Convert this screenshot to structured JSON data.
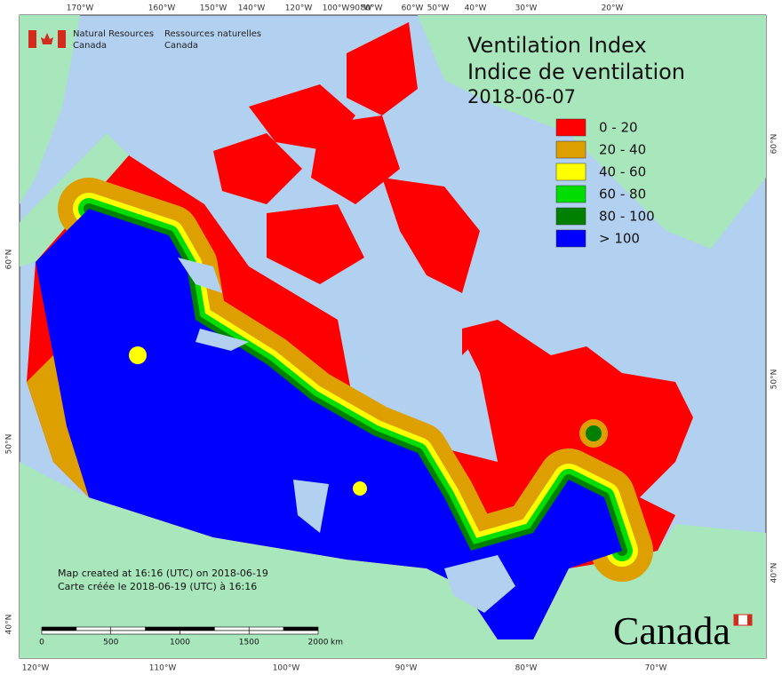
{
  "header": {
    "title": "Ventilation Index",
    "title_fr": "Indice de ventilation",
    "date": "2018-06-07"
  },
  "agency": {
    "en": [
      "Natural Resources",
      "Canada"
    ],
    "fr": [
      "Ressources naturelles",
      "Canada"
    ]
  },
  "legend": [
    {
      "label": "0 - 20",
      "color": "#ff0000"
    },
    {
      "label": "20 - 40",
      "color": "#dda000"
    },
    {
      "label": "40 - 60",
      "color": "#ffff00"
    },
    {
      "label": "60 - 80",
      "color": "#00dd00"
    },
    {
      "label": "80 - 100",
      "color": "#008000"
    },
    {
      "label": "> 100",
      "color": "#0000ff"
    }
  ],
  "graticule": {
    "top": [
      "170°W",
      "160°W",
      "150°W",
      "140°W",
      "120°W",
      "100°W",
      "90°W",
      "80°W",
      "60°W",
      "50°W",
      "40°W",
      "30°W",
      "20°W"
    ],
    "bottom": [
      "120°W",
      "110°W",
      "100°W",
      "90°W",
      "80°W",
      "70°W"
    ],
    "left": [
      "60°N",
      "50°N",
      "40°N"
    ],
    "right": [
      "60°N",
      "50°N",
      "40°N"
    ]
  },
  "footer": {
    "created_en": "Map created at 16:16 (UTC) on 2018-06-19",
    "created_fr": "Carte créée le 2018-06-19 (UTC) à 16:16"
  },
  "scale_bar": {
    "labels": [
      "0",
      "500",
      "1000",
      "1500",
      "2000"
    ],
    "unit": "km"
  },
  "wordmark": "Canada"
}
